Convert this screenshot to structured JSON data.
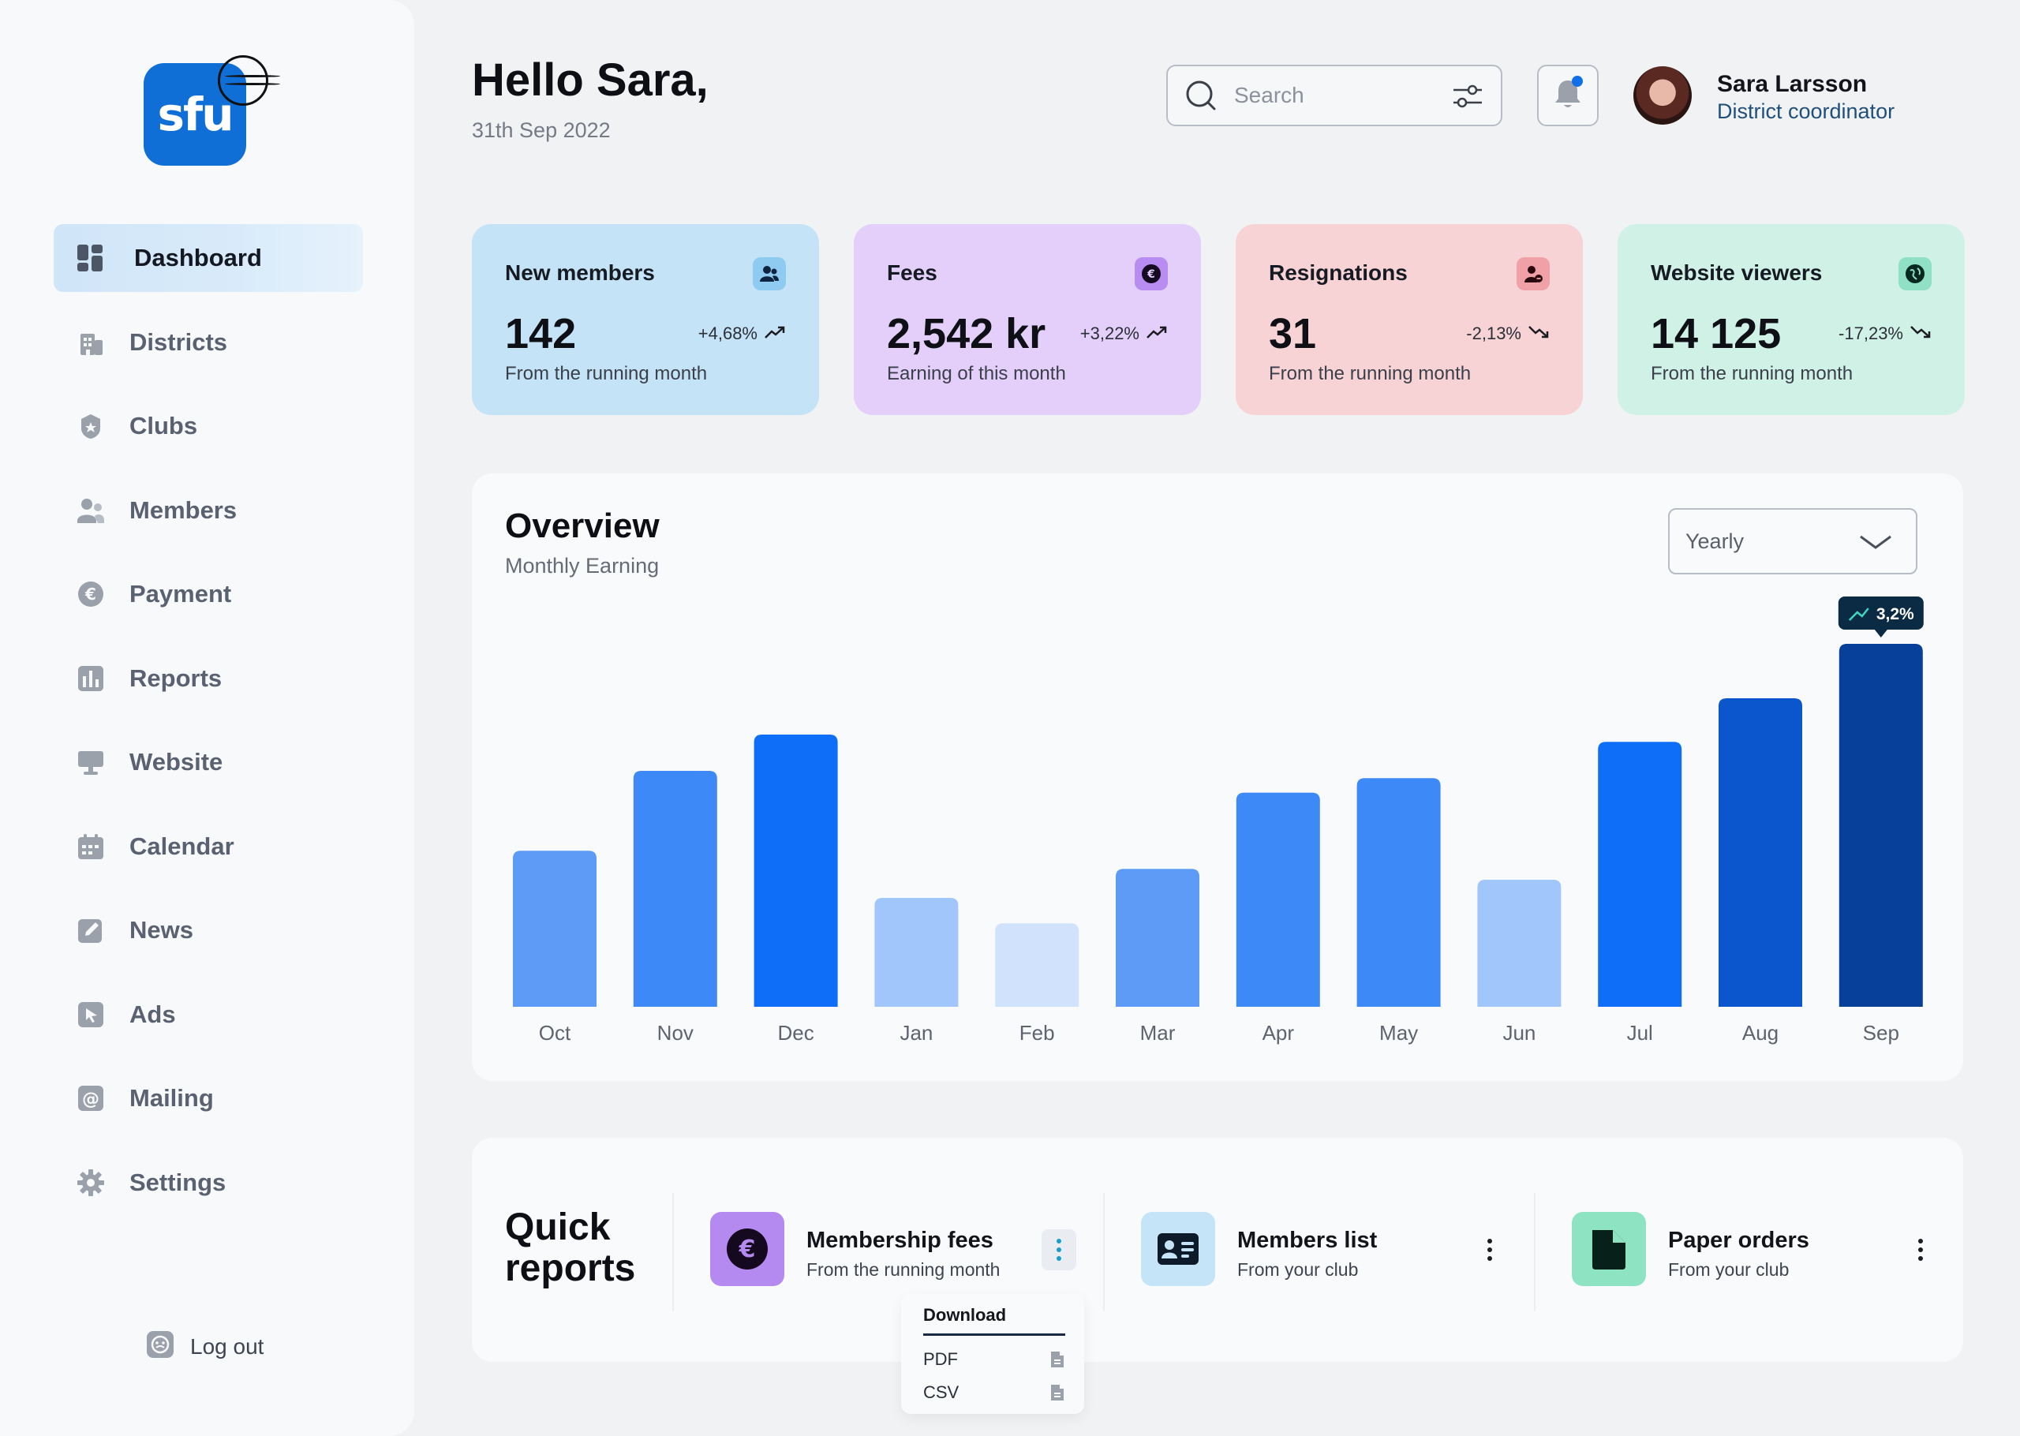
{
  "sidebar": {
    "logo_text": "sfu",
    "items": [
      {
        "label": "Dashboard"
      },
      {
        "label": "Districts"
      },
      {
        "label": "Clubs"
      },
      {
        "label": "Members"
      },
      {
        "label": "Payment"
      },
      {
        "label": "Reports"
      },
      {
        "label": "Website"
      },
      {
        "label": "Calendar"
      },
      {
        "label": "News"
      },
      {
        "label": "Ads"
      },
      {
        "label": "Mailing"
      },
      {
        "label": "Settings"
      }
    ],
    "logout_label": "Log out"
  },
  "header": {
    "greeting": "Hello Sara,",
    "date": "31th Sep 2022",
    "search_placeholder": "Search",
    "user_name": "Sara Larsson",
    "user_role": "District coordinator"
  },
  "cards": [
    {
      "title": "New members",
      "value": "142",
      "change": "+4,68%",
      "trend": "up",
      "subtitle": "From the running month",
      "bg": "#c4e3f7",
      "icon_bg": "#8fcaf0"
    },
    {
      "title": "Fees",
      "value": "2,542 kr",
      "change": "+3,22%",
      "trend": "up",
      "subtitle": "Earning of this month",
      "bg": "#e3cffa",
      "icon_bg": "#b88cf0"
    },
    {
      "title": "Resignations",
      "value": "31",
      "change": "-2,13%",
      "trend": "down",
      "subtitle": "From the running month",
      "bg": "#f7d3d6",
      "icon_bg": "#f0a1a8"
    },
    {
      "title": "Website viewers",
      "value": "14 125",
      "change": "-17,23%",
      "trend": "down",
      "subtitle": "From the running month",
      "bg": "#d0f2e6",
      "icon_bg": "#8fe0c4"
    }
  ],
  "overview": {
    "title": "Overview",
    "subtitle": "Monthly Earning",
    "period_select": "Yearly",
    "highlight_label": "3,2%"
  },
  "chart_data": {
    "type": "bar",
    "title": "Overview",
    "subtitle": "Monthly Earning",
    "categories": [
      "Oct",
      "Nov",
      "Dec",
      "Jan",
      "Feb",
      "Mar",
      "Apr",
      "May",
      "Jun",
      "Jul",
      "Aug",
      "Sep"
    ],
    "values": [
      43,
      65,
      75,
      30,
      23,
      38,
      59,
      63,
      35,
      73,
      85,
      100
    ],
    "colors": [
      "#5d9bf7",
      "#3d89f7",
      "#0f6ef7",
      "#a1c6fb",
      "#d1e3fc",
      "#5d9bf7",
      "#3d89f7",
      "#3d89f7",
      "#a1c6fb",
      "#0f6ef7",
      "#0b56cd",
      "#07409b"
    ],
    "ylim": [
      0,
      100
    ],
    "grid": false,
    "annotation": {
      "category": "Sep",
      "label": "3,2%"
    }
  },
  "quick_reports": {
    "title": "Quick reports",
    "items": [
      {
        "name": "Membership fees",
        "subtitle": "From the running month",
        "icon_bg": "#b48af0"
      },
      {
        "name": "Members list",
        "subtitle": "From your club",
        "icon_bg": "#c6e4f8"
      },
      {
        "name": "Paper orders",
        "subtitle": "From your club",
        "icon_bg": "#8ee3c3"
      }
    ]
  },
  "download_menu": {
    "title": "Download",
    "options": [
      {
        "label": "PDF"
      },
      {
        "label": "CSV"
      }
    ]
  }
}
